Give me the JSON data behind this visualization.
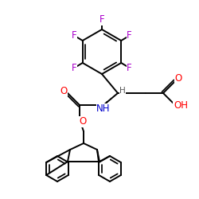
{
  "background": "#ffffff",
  "atom_colors": {
    "F": "#aa00cc",
    "O": "#ff0000",
    "N": "#0000cc",
    "C": "#000000",
    "H": "#555555"
  },
  "bond_color": "#000000",
  "bond_width": 1.4
}
